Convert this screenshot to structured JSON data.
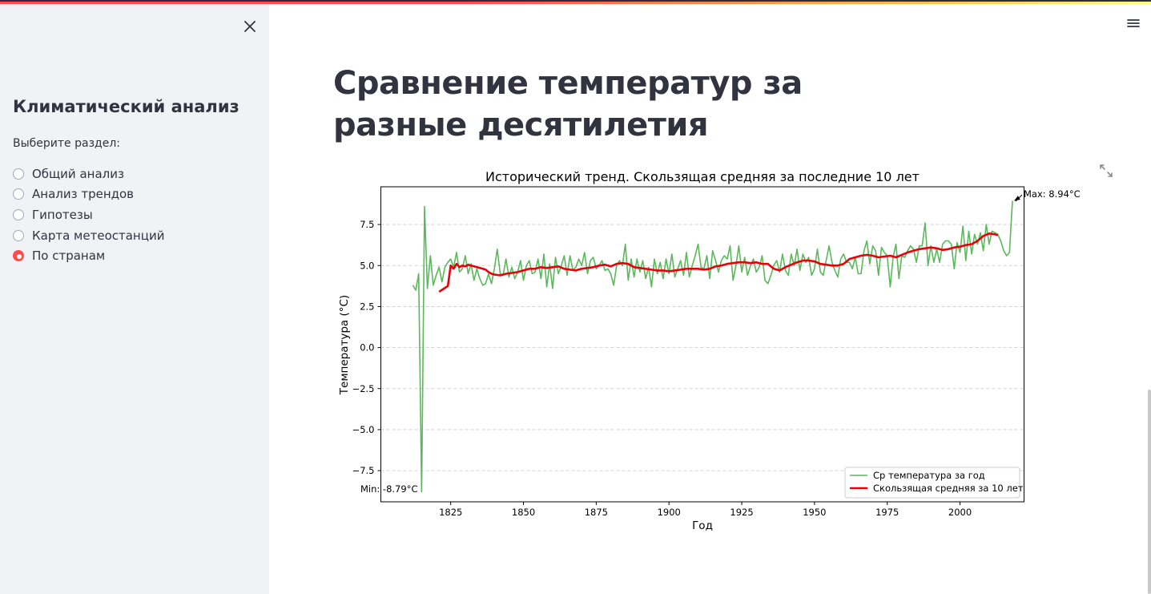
{
  "sidebar": {
    "title": "Климатический анализ",
    "radio_label": "Выберите раздел:",
    "options": [
      {
        "label": "Общий анализ",
        "selected": false
      },
      {
        "label": "Анализ трендов",
        "selected": false
      },
      {
        "label": "Гипотезы",
        "selected": false
      },
      {
        "label": "Карта метеостанций",
        "selected": false
      },
      {
        "label": "По странам",
        "selected": true
      }
    ],
    "close_icon": "close-icon"
  },
  "header": {
    "menu_icon": "hamburger-menu-icon"
  },
  "main": {
    "title": "Сравнение температур за разные десятилетия",
    "expand_icon": "fullscreen-expand-icon"
  },
  "colors": {
    "accent": "#ff4b4b",
    "sidebar_bg": "#f0f2f6",
    "annual_line": "#5cb85c",
    "rolling_line": "#e8000b"
  },
  "chart_data": {
    "type": "line",
    "title": "Исторический тренд. Скользящая средняя за последние 10 лет",
    "xlabel": "Год",
    "ylabel": "Температура (°C)",
    "xlim": [
      1801,
      2022
    ],
    "ylim": [
      -9.4,
      9.8
    ],
    "xticks": [
      1825,
      1850,
      1875,
      1900,
      1925,
      1950,
      1975,
      2000
    ],
    "yticks": [
      -7.5,
      -5.0,
      -2.5,
      0.0,
      2.5,
      5.0,
      7.5
    ],
    "ytick_labels": [
      "−7.5",
      "−5.0",
      "−2.5",
      "0.0",
      "2.5",
      "5.0",
      "7.5"
    ],
    "grid": "horizontal dashed",
    "legend_position": "lower right",
    "series": [
      {
        "name": "Ср температура за год",
        "color": "#5cb85c",
        "x_start": 1812,
        "values": [
          3.8,
          3.5,
          4.5,
          -8.79,
          8.6,
          3.6,
          5.6,
          3.8,
          4.4,
          4.9,
          4.0,
          4.9,
          5.2,
          5.4,
          4.9,
          5.8,
          4.6,
          4.8,
          5.6,
          4.5,
          5.1,
          4.1,
          4.8,
          4.2,
          3.8,
          3.9,
          4.5,
          3.9,
          4.8,
          6.0,
          4.5,
          4.4,
          5.4,
          4.3,
          4.9,
          4.2,
          4.6,
          5.3,
          4.1,
          5.0,
          5.3,
          4.5,
          4.6,
          5.4,
          4.2,
          5.7,
          3.7,
          5.1,
          3.6,
          5.5,
          4.5,
          5.0,
          5.6,
          4.4,
          5.6,
          4.7,
          4.9,
          5.4,
          5.0,
          5.8,
          4.5,
          5.3,
          5.5,
          4.8,
          5.0,
          5.3,
          4.7,
          4.8,
          4.5,
          3.8,
          5.0,
          5.3,
          5.0,
          6.3,
          4.1,
          5.4,
          4.3,
          5.4,
          4.6,
          5.3,
          4.2,
          4.9,
          3.7,
          5.4,
          4.5,
          5.2,
          4.2,
          5.4,
          4.5,
          5.7,
          4.3,
          4.8,
          5.3,
          4.4,
          5.8,
          4.3,
          5.0,
          5.6,
          6.3,
          4.9,
          4.8,
          5.6,
          4.2,
          5.9,
          5.3,
          4.6,
          5.3,
          5.6,
          5.4,
          6.2,
          4.1,
          5.0,
          6.2,
          4.6,
          5.5,
          4.4,
          5.0,
          5.4,
          4.6,
          4.9,
          5.6,
          4.1,
          3.9,
          4.4,
          5.0,
          5.3,
          4.6,
          5.7,
          4.7,
          4.4,
          5.7,
          5.0,
          6.0,
          4.7,
          5.7,
          5.2,
          5.5,
          4.4,
          4.8,
          6.0,
          4.6,
          4.4,
          5.3,
          6.2,
          5.2,
          4.7,
          4.3,
          5.4,
          5.7,
          5.2,
          5.2,
          4.8,
          5.5,
          4.5,
          4.5,
          5.9,
          6.5,
          5.1,
          6.2,
          5.9,
          4.4,
          6.1,
          5.8,
          5.6,
          3.7,
          5.5,
          6.3,
          4.2,
          5.6,
          5.5,
          5.9,
          6.2,
          6.0,
          5.2,
          6.2,
          6.2,
          7.6,
          5.0,
          6.2,
          5.2,
          6.0,
          5.2,
          6.3,
          6.5,
          6.5,
          6.3,
          4.8,
          6.4,
          5.8,
          7.4,
          5.3,
          7.1,
          5.7,
          6.9,
          6.3,
          7.0,
          5.9,
          7.5,
          6.3,
          7.1,
          7.0,
          6.9,
          6.5,
          5.9,
          5.6,
          5.8,
          8.94
        ],
        "min_label": "Min: -8.79°C",
        "max_label": "Max: 8.94°C"
      },
      {
        "name": "Скользящая средняя за 10 лет",
        "color": "#e8000b",
        "x": [
          1821,
          1824,
          1825,
          1826,
          1827,
          1828,
          1829,
          1830,
          1831,
          1832,
          1833,
          1834,
          1835,
          1836,
          1837,
          1838,
          1839,
          1840,
          1842,
          1844,
          1846,
          1848,
          1850,
          1852,
          1854,
          1856,
          1858,
          1860,
          1862,
          1864,
          1866,
          1868,
          1870,
          1872,
          1874,
          1876,
          1878,
          1880,
          1882,
          1884,
          1886,
          1888,
          1890,
          1892,
          1894,
          1896,
          1898,
          1900,
          1902,
          1904,
          1906,
          1908,
          1910,
          1912,
          1914,
          1916,
          1918,
          1920,
          1922,
          1924,
          1926,
          1928,
          1930,
          1932,
          1934,
          1936,
          1938,
          1940,
          1942,
          1944,
          1946,
          1948,
          1950,
          1952,
          1954,
          1956,
          1958,
          1960,
          1962,
          1964,
          1966,
          1968,
          1970,
          1972,
          1974,
          1976,
          1978,
          1980,
          1982,
          1984,
          1986,
          1988,
          1990,
          1992,
          1994,
          1996,
          1998,
          2000,
          2002,
          2004,
          2006,
          2008,
          2010,
          2012,
          2013
        ],
        "values": [
          3.4,
          3.75,
          5.0,
          4.8,
          5.1,
          4.9,
          5.0,
          4.95,
          5.05,
          5.0,
          4.95,
          4.9,
          4.85,
          4.8,
          4.75,
          4.6,
          4.5,
          4.45,
          4.4,
          4.5,
          4.55,
          4.6,
          4.7,
          4.8,
          4.8,
          4.9,
          4.85,
          4.9,
          4.95,
          4.8,
          4.75,
          4.7,
          4.8,
          4.85,
          4.9,
          5.0,
          5.05,
          4.95,
          5.1,
          5.15,
          5.1,
          4.9,
          4.85,
          4.8,
          4.75,
          4.7,
          4.7,
          4.65,
          4.7,
          4.75,
          4.8,
          4.8,
          4.8,
          4.75,
          4.8,
          4.95,
          5.0,
          5.1,
          5.15,
          5.2,
          5.2,
          5.15,
          5.2,
          5.1,
          5.1,
          4.8,
          4.7,
          4.9,
          5.05,
          5.2,
          5.3,
          5.3,
          5.25,
          5.1,
          5.05,
          5.0,
          5.0,
          5.1,
          5.4,
          5.5,
          5.6,
          5.65,
          5.6,
          5.5,
          5.55,
          5.6,
          5.5,
          5.65,
          5.8,
          5.9,
          6.0,
          6.05,
          6.1,
          6.05,
          5.95,
          6.0,
          6.1,
          6.15,
          6.25,
          6.3,
          6.5,
          6.8,
          6.95,
          6.9,
          6.85
        ]
      }
    ]
  }
}
